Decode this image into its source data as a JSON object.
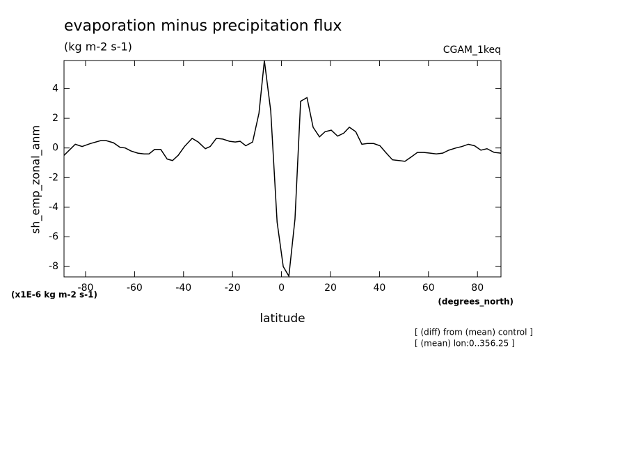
{
  "chart_data": {
    "type": "line",
    "title": "evaporation minus precipitation flux",
    "subtitle": "(kg m-2 s-1)",
    "dataset": "CGAM_1keq",
    "ylabel": "sh_emp_zonal_anm",
    "xlabel": "latitude",
    "xunits": "(degrees_north)",
    "yunits": "(x1E-6 kg m-2 s-1)",
    "notes": [
      "[ (diff) from (mean) control ]",
      "[ (mean) lon:0..356.25 ]"
    ],
    "xlim": [
      -88.8,
      89.6
    ],
    "ylim": [
      -8.7,
      5.9
    ],
    "xticks": [
      -80,
      -60,
      -40,
      -20,
      0,
      20,
      40,
      60,
      80
    ],
    "yticks": [
      -8,
      -6,
      -4,
      -2,
      0,
      2,
      4
    ],
    "series": [
      {
        "color": "#000000",
        "x": [
          -88.8,
          -84.2,
          -81.4,
          -78,
          -73.7,
          -71.7,
          -68.6,
          -66,
          -63.8,
          -61.5,
          -58.7,
          -56.1,
          -54.1,
          -51.8,
          -49.3,
          -46.7,
          -44.5,
          -42.2,
          -39.6,
          -36.5,
          -34,
          -31.1,
          -29.1,
          -26.6,
          -24,
          -21.2,
          -18.9,
          -16.9,
          -14.6,
          -11.8,
          -9.2,
          -7,
          -4.4,
          -1.8,
          0.7,
          3,
          5.5,
          7.8,
          10.4,
          12.9,
          15.5,
          17.8,
          20.3,
          22.9,
          25.4,
          27.7,
          30.3,
          32.8,
          35.1,
          37.6,
          40.2,
          42.8,
          45.3,
          47.9,
          50.4,
          53,
          55.5,
          58.1,
          60.7,
          63.2,
          65.8,
          68.3,
          71.2,
          73.7,
          76.3,
          78.8,
          81.4,
          83.9,
          86.8,
          89.6
        ],
        "values": [
          -0.5,
          0.25,
          0.1,
          0.3,
          0.5,
          0.5,
          0.35,
          0.05,
          0,
          -0.2,
          -0.35,
          -0.4,
          -0.4,
          -0.1,
          -0.1,
          -0.75,
          -0.85,
          -0.5,
          0.1,
          0.65,
          0.4,
          -0.05,
          0.1,
          0.65,
          0.6,
          0.45,
          0.4,
          0.45,
          0.15,
          0.4,
          2.35,
          5.9,
          2.5,
          -5,
          -8,
          -8.65,
          -4.8,
          3.15,
          3.4,
          1.4,
          0.75,
          1.1,
          1.2,
          0.8,
          1,
          1.4,
          1.1,
          0.25,
          0.3,
          0.3,
          0.15,
          -0.35,
          -0.8,
          -0.85,
          -0.9,
          -0.6,
          -0.3,
          -0.3,
          -0.35,
          -0.4,
          -0.35,
          -0.15,
          0,
          0.1,
          0.25,
          0.15,
          -0.15,
          -0.05,
          -0.3,
          -0.35
        ]
      }
    ]
  }
}
